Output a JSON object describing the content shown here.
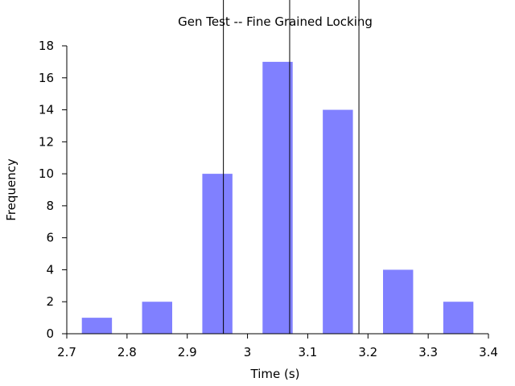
{
  "chart_data": {
    "type": "bar",
    "title": "Gen Test -- Fine Grained Locking",
    "xlabel": "Time (s)",
    "ylabel": "Frequency",
    "xlim": [
      2.7,
      3.4
    ],
    "ylim": [
      0,
      18
    ],
    "x_ticks": [
      "2.7",
      "2.8",
      "2.9",
      "3",
      "3.1",
      "3.2",
      "3.3",
      "3.4"
    ],
    "y_ticks": [
      "0",
      "2",
      "4",
      "6",
      "8",
      "10",
      "12",
      "14",
      "16",
      "18"
    ],
    "bins": [
      {
        "start": 2.725,
        "end": 2.775,
        "value": 1
      },
      {
        "start": 2.825,
        "end": 2.875,
        "value": 2
      },
      {
        "start": 2.925,
        "end": 2.975,
        "value": 10
      },
      {
        "start": 3.025,
        "end": 3.075,
        "value": 17
      },
      {
        "start": 3.125,
        "end": 3.175,
        "value": 14
      },
      {
        "start": 3.225,
        "end": 3.275,
        "value": 4
      },
      {
        "start": 3.325,
        "end": 3.375,
        "value": 2
      }
    ],
    "vertical_lines": [
      2.96,
      3.07,
      3.185
    ],
    "bar_color": "#8080ff",
    "grid": false,
    "legend": "none"
  }
}
